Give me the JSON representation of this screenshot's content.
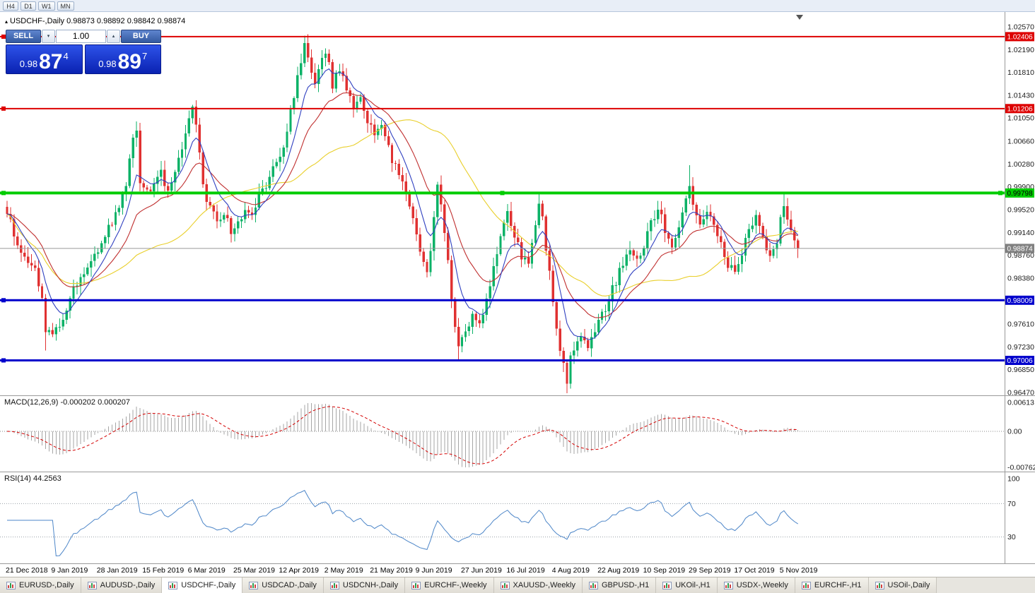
{
  "toolbar": {
    "buttons": [
      "H4",
      "D1",
      "W1",
      "MN"
    ]
  },
  "header": {
    "collapse_icon": "▴",
    "symbol_title": "USDCHF-,Daily",
    "ohlc": "0.98873 0.98892 0.98842 0.98874"
  },
  "one_click": {
    "sell_label": "SELL",
    "buy_label": "BUY",
    "volume": "1.00",
    "down_icon": "▾",
    "up_icon": "▴",
    "sell_price": {
      "prefix": "0.98",
      "big": "87",
      "sup": "4"
    },
    "buy_price": {
      "prefix": "0.98",
      "big": "89",
      "sup": "7"
    }
  },
  "chart_data": {
    "type": "candlestick",
    "symbol": "USDCHF",
    "timeframe": "Daily",
    "title": "USDCHF-,Daily",
    "x_labels": [
      "21 Dec 2018",
      "9 Jan 2019",
      "28 Jan 2019",
      "15 Feb 2019",
      "6 Mar 2019",
      "25 Mar 2019",
      "12 Apr 2019",
      "2 May 2019",
      "21 May 2019",
      "9 Jun 2019",
      "27 Jun 2019",
      "16 Jul 2019",
      "4 Aug 2019",
      "22 Aug 2019",
      "10 Sep 2019",
      "29 Sep 2019",
      "17 Oct 2019",
      "5 Nov 2019"
    ],
    "y_axis": {
      "top": 1.0257,
      "bottom": 0.9647,
      "labels": [
        "1.02570",
        "1.02190",
        "1.01810",
        "1.01430",
        "1.01050",
        "1.00660",
        "1.00280",
        "0.99900",
        "0.99520",
        "0.99140",
        "0.98760",
        "0.98380",
        "0.97610",
        "0.97230",
        "0.96850",
        "0.96470"
      ]
    },
    "current_price": {
      "value": 0.98874,
      "label": "0.98874"
    },
    "hlines": [
      {
        "price": 1.02406,
        "label": "1.02406",
        "color": "#dd0000",
        "width": 2,
        "text_color": "#ffffff",
        "selected": false
      },
      {
        "price": 1.01206,
        "label": "1.01206",
        "color": "#dd0000",
        "width": 2,
        "text_color": "#ffffff",
        "selected": false
      },
      {
        "price": 0.99798,
        "label": "0.99798",
        "color": "#00cc00",
        "width": 4,
        "text_color": "#000000",
        "selected": true
      },
      {
        "price": 0.98009,
        "label": "0.98009",
        "color": "#0000cc",
        "width": 3,
        "text_color": "#ffffff",
        "selected": false
      },
      {
        "price": 0.97006,
        "label": "0.97006",
        "color": "#0000cc",
        "width": 3,
        "text_color": "#ffffff",
        "selected": false
      }
    ],
    "candles": {
      "count": 227,
      "close_anchors": [
        [
          0,
          0.9945
        ],
        [
          2,
          0.9916
        ],
        [
          4,
          0.9884
        ],
        [
          6,
          0.9862
        ],
        [
          8,
          0.9846
        ],
        [
          10,
          0.9802
        ],
        [
          11,
          0.9756
        ],
        [
          13,
          0.9738
        ],
        [
          15,
          0.9762
        ],
        [
          17,
          0.9792
        ],
        [
          20,
          0.983
        ],
        [
          23,
          0.9856
        ],
        [
          26,
          0.9886
        ],
        [
          29,
          0.9922
        ],
        [
          32,
          0.9958
        ],
        [
          34,
          0.9992
        ],
        [
          36,
          1.0068
        ],
        [
          37,
          1.009
        ],
        [
          38,
          1.0002
        ],
        [
          40,
          0.998
        ],
        [
          42,
          0.9996
        ],
        [
          44,
          1.0012
        ],
        [
          46,
          0.9986
        ],
        [
          48,
          1.0022
        ],
        [
          50,
          1.0056
        ],
        [
          52,
          1.0096
        ],
        [
          53,
          1.0116
        ],
        [
          54,
          1.0086
        ],
        [
          55,
          1.0042
        ],
        [
          56,
          0.9992
        ],
        [
          58,
          0.9952
        ],
        [
          60,
          0.9932
        ],
        [
          62,
          0.9946
        ],
        [
          64,
          0.9916
        ],
        [
          66,
          0.9926
        ],
        [
          68,
          0.9956
        ],
        [
          70,
          0.9942
        ],
        [
          72,
          0.9976
        ],
        [
          74,
          0.9996
        ],
        [
          76,
          1.0016
        ],
        [
          78,
          1.0042
        ],
        [
          80,
          1.0082
        ],
        [
          82,
          1.0142
        ],
        [
          84,
          1.0202
        ],
        [
          85,
          1.0228
        ],
        [
          86,
          1.0212
        ],
        [
          87,
          1.0182
        ],
        [
          88,
          1.0156
        ],
        [
          89,
          1.0192
        ],
        [
          91,
          1.0216
        ],
        [
          93,
          1.0162
        ],
        [
          95,
          1.0186
        ],
        [
          97,
          1.0152
        ],
        [
          99,
          1.0122
        ],
        [
          101,
          1.0142
        ],
        [
          103,
          1.0102
        ],
        [
          105,
          1.0072
        ],
        [
          107,
          1.0092
        ],
        [
          109,
          1.0052
        ],
        [
          111,
          1.0022
        ],
        [
          113,
          0.9992
        ],
        [
          115,
          0.9952
        ],
        [
          117,
          0.9906
        ],
        [
          119,
          0.9868
        ],
        [
          120,
          0.9846
        ],
        [
          121,
          0.9892
        ],
        [
          122,
          0.9942
        ],
        [
          123,
          0.9986
        ],
        [
          124,
          0.9962
        ],
        [
          125,
          0.9906
        ],
        [
          126,
          0.9862
        ],
        [
          127,
          0.9802
        ],
        [
          128,
          0.9756
        ],
        [
          129,
          0.9722
        ],
        [
          131,
          0.9746
        ],
        [
          133,
          0.9776
        ],
        [
          135,
          0.9762
        ],
        [
          137,
          0.9802
        ],
        [
          139,
          0.9852
        ],
        [
          141,
          0.9902
        ],
        [
          143,
          0.9942
        ],
        [
          145,
          0.9906
        ],
        [
          147,
          0.9872
        ],
        [
          149,
          0.9856
        ],
        [
          151,
          0.9922
        ],
        [
          152,
          0.9966
        ],
        [
          153,
          0.9932
        ],
        [
          154,
          0.9882
        ],
        [
          155,
          0.9842
        ],
        [
          156,
          0.9802
        ],
        [
          157,
          0.9762
        ],
        [
          158,
          0.9722
        ],
        [
          159,
          0.9692
        ],
        [
          160,
          0.9666
        ],
        [
          161,
          0.9702
        ],
        [
          162,
          0.9726
        ],
        [
          164,
          0.9746
        ],
        [
          166,
          0.9722
        ],
        [
          168,
          0.9752
        ],
        [
          170,
          0.9776
        ],
        [
          172,
          0.9802
        ],
        [
          174,
          0.9832
        ],
        [
          176,
          0.9862
        ],
        [
          178,
          0.9892
        ],
        [
          180,
          0.9866
        ],
        [
          182,
          0.9896
        ],
        [
          184,
          0.9932
        ],
        [
          186,
          0.9956
        ],
        [
          188,
          0.9922
        ],
        [
          190,
          0.9892
        ],
        [
          192,
          0.9926
        ],
        [
          194,
          0.9962
        ],
        [
          195,
          0.9992
        ],
        [
          196,
          0.9966
        ],
        [
          198,
          0.9932
        ],
        [
          200,
          0.9952
        ],
        [
          202,
          0.9922
        ],
        [
          204,
          0.9892
        ],
        [
          206,
          0.9862
        ],
        [
          208,
          0.9842
        ],
        [
          210,
          0.9882
        ],
        [
          212,
          0.9922
        ],
        [
          214,
          0.9946
        ],
        [
          216,
          0.9912
        ],
        [
          218,
          0.9872
        ],
        [
          220,
          0.9902
        ],
        [
          221,
          0.9932
        ],
        [
          222,
          0.9962
        ],
        [
          223,
          0.9942
        ],
        [
          224,
          0.9916
        ],
        [
          225,
          0.9896
        ],
        [
          226,
          0.98874
        ]
      ],
      "spike_highs": {
        "37": 1.0098,
        "53": 1.0122,
        "85": 1.0242,
        "152": 0.9978,
        "195": 1.0026,
        "222": 0.998
      },
      "spike_lows": {
        "11": 0.9717,
        "129": 0.97,
        "160": 0.9648
      }
    },
    "moving_averages": [
      {
        "period": 44,
        "color": "#e9cf2b",
        "type": "sma"
      },
      {
        "period": 20,
        "color": "#c03030",
        "type": "ema"
      },
      {
        "period": 8,
        "color": "#3040c0",
        "type": "ema"
      }
    ],
    "indicators": {
      "macd": {
        "title": "MACD(12,26,9) -0.000202 0.000207",
        "fast": 12,
        "slow": 26,
        "signal": 9,
        "max": 0.00613,
        "min": -0.00762,
        "scale_labels": [
          "0.00613",
          "0.00",
          "-0.00762"
        ]
      },
      "rsi": {
        "title": "RSI(14) 44.2563",
        "period": 14,
        "levels": [
          70,
          30
        ],
        "scale_labels": [
          "100",
          "70",
          "30"
        ]
      }
    },
    "colors": {
      "up": "#0cb267",
      "down": "#e03131",
      "macd_hist": "#a6a6a6",
      "macd_signal": "#d40000",
      "rsi_line": "#4d86c8",
      "current_price_badge": "#808080",
      "current_price_line": "#999999"
    }
  },
  "tabs": {
    "active": "USDCHF-,Daily",
    "items": [
      "EURUSD-,Daily",
      "AUDUSD-,Daily",
      "USDCHF-,Daily",
      "USDCAD-,Daily",
      "USDCNH-,Daily",
      "EURCHF-,Weekly",
      "XAUUSD-,Weekly",
      "GBPUSD-,H1",
      "UKOil-,H1",
      "USDX-,Weekly",
      "EURCHF-,H1",
      "USOil-,Daily"
    ]
  }
}
